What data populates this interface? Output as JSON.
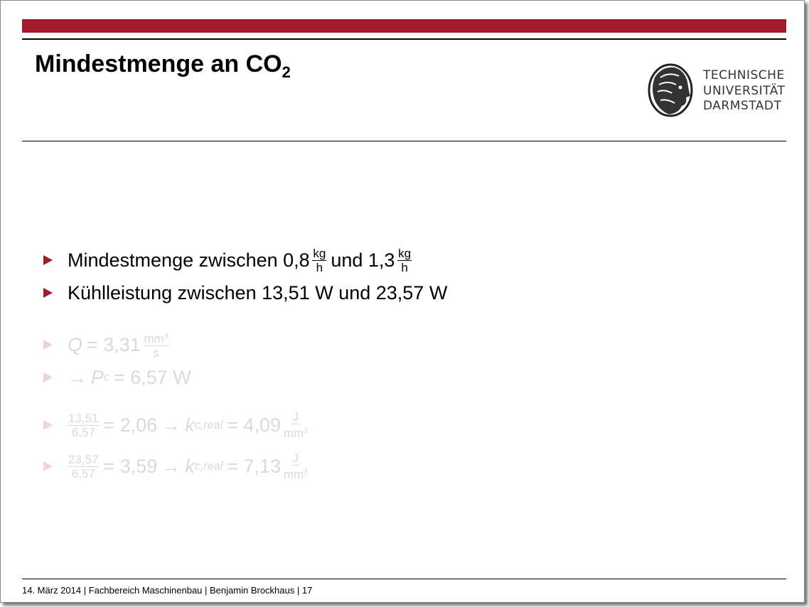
{
  "title": {
    "text": "Mindestmenge an CO",
    "sub": "2"
  },
  "logo": [
    "TECHNISCHE",
    "UNIVERSITÄT",
    "DARMSTADT"
  ],
  "bullets": [
    {
      "segments": [
        {
          "text": "Mindestmenge zwischen 0,8"
        },
        {
          "frac": {
            "num": [
              {
                "text": "kg"
              }
            ],
            "den": [
              {
                "text": "h"
              }
            ]
          }
        },
        {
          "text": "und 1,3"
        },
        {
          "frac": {
            "num": [
              {
                "text": "kg"
              }
            ],
            "den": [
              {
                "text": "h"
              }
            ]
          }
        }
      ]
    },
    {
      "segments": [
        {
          "text": "Kühlleistung zwischen 13,51 W und 23,57 W"
        }
      ]
    },
    {
      "faded": true,
      "segments": [
        {
          "italic": "Q"
        },
        {
          "text": "= 3,31"
        },
        {
          "frac": {
            "num": [
              {
                "text": "mm"
              },
              {
                "sup": "3"
              }
            ],
            "den": [
              {
                "text": "s"
              }
            ]
          }
        }
      ]
    },
    {
      "faded": true,
      "segments": [
        {
          "text": "→"
        },
        {
          "italic": "P"
        },
        {
          "sub": "c"
        },
        {
          "text": "= 6,57 W"
        }
      ]
    },
    {
      "faded": true,
      "segments": [
        {
          "frac": {
            "num": [
              {
                "text": "13,51"
              }
            ],
            "den": [
              {
                "text": "6,57"
              }
            ]
          }
        },
        {
          "text": "= 2,06"
        },
        {
          "text": "→"
        },
        {
          "italic": "k"
        },
        {
          "sub": "c,real"
        },
        {
          "text": "= 4,09"
        },
        {
          "frac": {
            "num": [
              {
                "text": "J"
              }
            ],
            "den": [
              {
                "text": "mm"
              },
              {
                "sup": "3"
              }
            ]
          }
        }
      ]
    },
    {
      "faded": true,
      "segments": [
        {
          "frac": {
            "num": [
              {
                "text": "23,57"
              }
            ],
            "den": [
              {
                "text": "6,57"
              }
            ]
          }
        },
        {
          "text": "= 3,59"
        },
        {
          "text": "→"
        },
        {
          "italic": "k"
        },
        {
          "sub": "c,real"
        },
        {
          "text": "= 7,13"
        },
        {
          "frac": {
            "num": [
              {
                "text": "J"
              }
            ],
            "den": [
              {
                "text": "mm"
              },
              {
                "sup": "3"
              }
            ]
          }
        }
      ]
    }
  ],
  "footer": "14. März 2014 | Fachbereich Maschinenbau | Benjamin Brockhaus | 17"
}
